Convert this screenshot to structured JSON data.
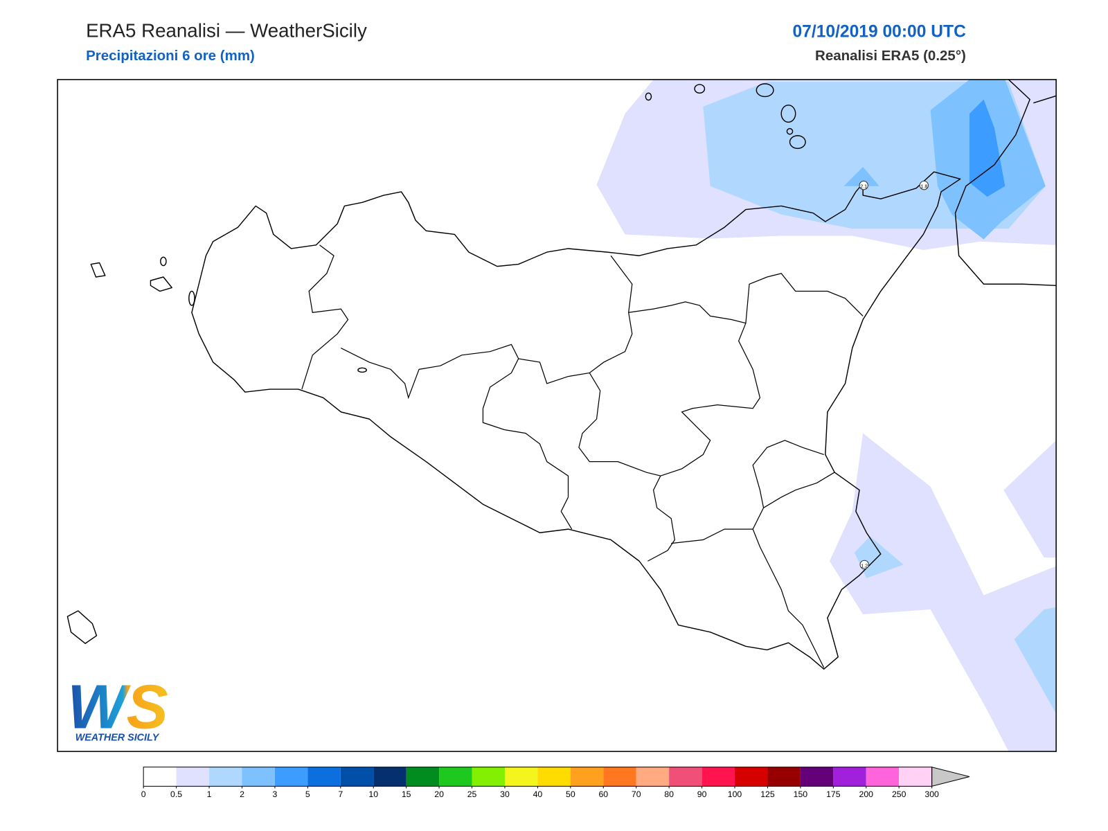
{
  "header": {
    "title": "ERA5 Reanalisi — WeatherSicily",
    "subtitle": "Precipitazioni 6 ore (mm)",
    "datetime": "07/10/2019 00:00 UTC",
    "model": "Reanalisi ERA5 (0.25°)"
  },
  "stations": [
    {
      "value": 2.1
    },
    {
      "value": 1.8
    },
    {
      "value": 1.2
    }
  ],
  "logo": {
    "text": "WS",
    "caption": "WEATHER SICILY"
  },
  "colorbar": {
    "levels": [
      0,
      0.5,
      1,
      2,
      3,
      5,
      7,
      10,
      15,
      20,
      25,
      30,
      40,
      50,
      60,
      70,
      80,
      90,
      100,
      125,
      150,
      175,
      200,
      250,
      300
    ],
    "colors": [
      "#ffffff",
      "#e0e0ff",
      "#b0d8ff",
      "#7dc1ff",
      "#3c9cff",
      "#0c6fe0",
      "#0050aa",
      "#043070",
      "#008c1e",
      "#1ec81e",
      "#82f000",
      "#f5f51e",
      "#ffdc00",
      "#ffa01e",
      "#ff7820",
      "#ffaa80",
      "#f05078",
      "#ff1450",
      "#d70000",
      "#960000",
      "#640078",
      "#a020dc",
      "#ff64dc",
      "#ffd2f5"
    ],
    "extend_color": "#c8c8c8"
  }
}
